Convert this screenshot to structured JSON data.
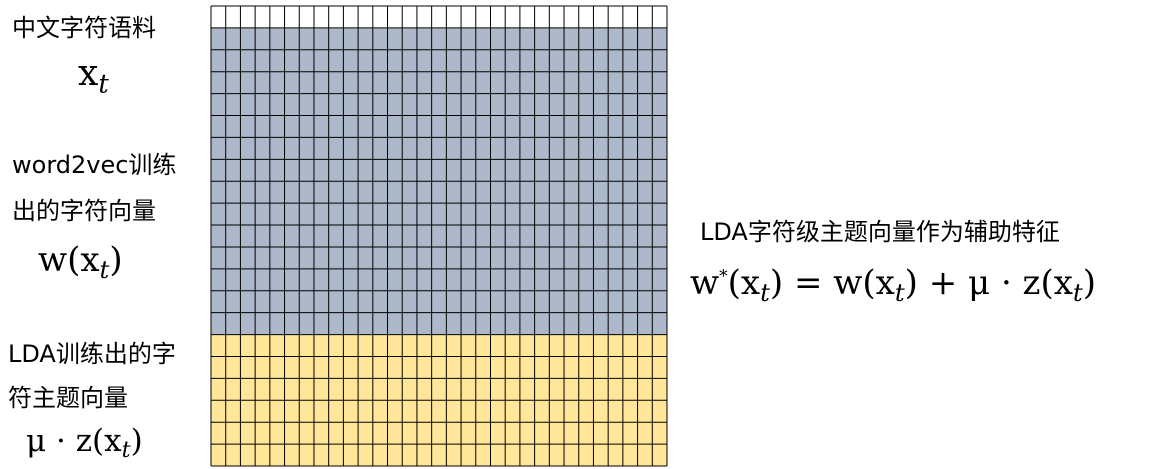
{
  "labels": {
    "corpus": "中文字符语料",
    "w2v_line1": "word2vec训练",
    "w2v_line2": "出的字符向量",
    "lda_line1": "LDA训练出的字",
    "lda_line2": "符主题向量",
    "right_title": "LDA字符级主题向量作为辅助特征"
  },
  "math": {
    "x_base": "x",
    "t": "t",
    "w_open": "w(x",
    "close": ")",
    "mu_z_open": "μ · z(x",
    "w_star": "w",
    "star": "*",
    "open_x": "(x",
    "close_eq": ") = w(x",
    "close_plus": ") + μ · z(x"
  },
  "grid": {
    "columns": 31,
    "row_groups": [
      {
        "name": "header-row",
        "rows": 1,
        "color": "#ffffff"
      },
      {
        "name": "word2vec-rows",
        "rows": 14,
        "color": "#adb9ca"
      },
      {
        "name": "lda-rows",
        "rows": 6,
        "color": "#ffe699"
      }
    ],
    "line_color": "#000000"
  }
}
